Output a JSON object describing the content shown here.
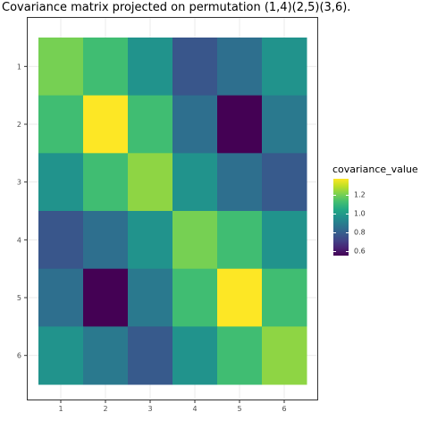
{
  "chart_data": {
    "type": "heatmap",
    "title": "Covariance matrix projected on permutation (1,4)(2,5)(3,6).",
    "x_categories": [
      "1",
      "2",
      "3",
      "4",
      "5",
      "6"
    ],
    "y_categories": [
      "1",
      "2",
      "3",
      "4",
      "5",
      "6"
    ],
    "values": [
      [
        1.2,
        1.12,
        0.97,
        0.77,
        0.85,
        0.97
      ],
      [
        1.12,
        1.37,
        1.12,
        0.85,
        0.55,
        0.88
      ],
      [
        0.97,
        1.12,
        1.23,
        0.97,
        0.85,
        0.78
      ],
      [
        0.77,
        0.85,
        0.97,
        1.2,
        1.12,
        0.97
      ],
      [
        0.85,
        0.55,
        0.88,
        1.12,
        1.37,
        1.12
      ],
      [
        0.97,
        0.88,
        0.78,
        0.97,
        1.12,
        1.23
      ]
    ],
    "legend": {
      "title": "covariance_value",
      "ticks": [
        "1.2",
        "1.0",
        "0.8",
        "0.6"
      ],
      "tick_values": [
        1.2,
        1.0,
        0.8,
        0.6
      ],
      "range": [
        0.55,
        1.37
      ],
      "colormap": "viridis",
      "position": "right"
    },
    "grid": true
  }
}
